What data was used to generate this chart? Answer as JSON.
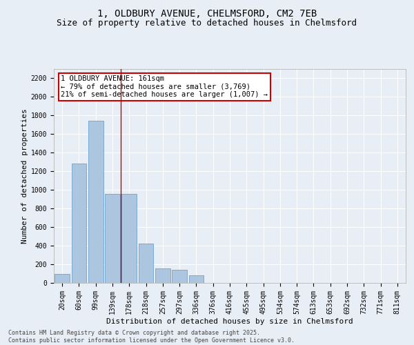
{
  "title_line1": "1, OLDBURY AVENUE, CHELMSFORD, CM2 7EB",
  "title_line2": "Size of property relative to detached houses in Chelmsford",
  "xlabel": "Distribution of detached houses by size in Chelmsford",
  "ylabel": "Number of detached properties",
  "footnote_line1": "Contains HM Land Registry data © Crown copyright and database right 2025.",
  "footnote_line2": "Contains public sector information licensed under the Open Government Licence v3.0.",
  "bar_labels": [
    "20sqm",
    "60sqm",
    "99sqm",
    "139sqm",
    "178sqm",
    "218sqm",
    "257sqm",
    "297sqm",
    "336sqm",
    "376sqm",
    "416sqm",
    "455sqm",
    "495sqm",
    "534sqm",
    "574sqm",
    "613sqm",
    "653sqm",
    "692sqm",
    "732sqm",
    "771sqm",
    "811sqm"
  ],
  "bar_values": [
    100,
    1280,
    1740,
    960,
    960,
    420,
    155,
    140,
    80,
    0,
    0,
    0,
    0,
    0,
    0,
    0,
    0,
    0,
    0,
    0,
    0
  ],
  "bar_color": "#adc6e0",
  "bar_edge_color": "#5a96c8",
  "background_color": "#e8eef5",
  "grid_color": "#ffffff",
  "vline_x": 3.5,
  "vline_color": "#cc0000",
  "annotation_text": "1 OLDBURY AVENUE: 161sqm\n← 79% of detached houses are smaller (3,769)\n21% of semi-detached houses are larger (1,007) →",
  "annotation_box_color": "#cc0000",
  "ylim": [
    0,
    2300
  ],
  "yticks": [
    0,
    200,
    400,
    600,
    800,
    1000,
    1200,
    1400,
    1600,
    1800,
    2000,
    2200
  ],
  "title_fontsize": 10,
  "subtitle_fontsize": 9,
  "axis_label_fontsize": 8,
  "tick_fontsize": 7,
  "annotation_fontsize": 7.5,
  "footnote_fontsize": 6
}
